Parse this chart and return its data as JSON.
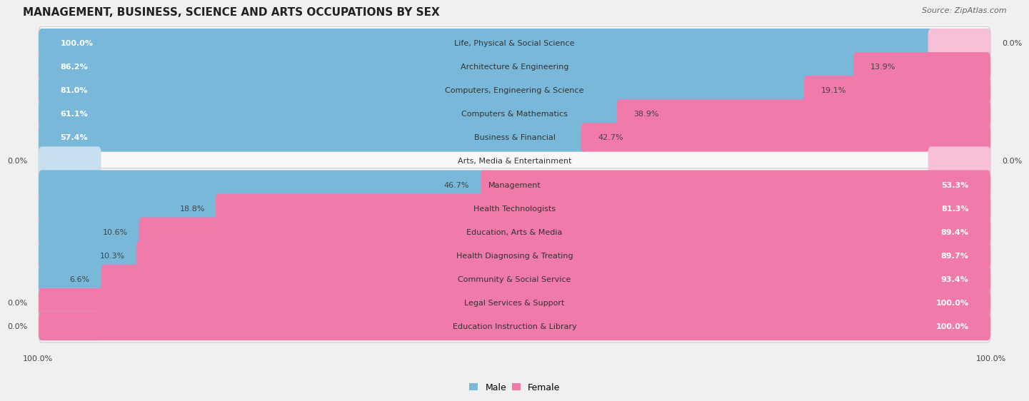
{
  "title": "MANAGEMENT, BUSINESS, SCIENCE AND ARTS OCCUPATIONS BY SEX",
  "source": "Source: ZipAtlas.com",
  "categories": [
    "Life, Physical & Social Science",
    "Architecture & Engineering",
    "Computers, Engineering & Science",
    "Computers & Mathematics",
    "Business & Financial",
    "Arts, Media & Entertainment",
    "Management",
    "Health Technologists",
    "Education, Arts & Media",
    "Health Diagnosing & Treating",
    "Community & Social Service",
    "Legal Services & Support",
    "Education Instruction & Library"
  ],
  "male": [
    100.0,
    86.2,
    81.0,
    61.1,
    57.4,
    0.0,
    46.7,
    18.8,
    10.6,
    10.3,
    6.6,
    0.0,
    0.0
  ],
  "female": [
    0.0,
    13.9,
    19.1,
    38.9,
    42.7,
    0.0,
    53.3,
    81.3,
    89.4,
    89.7,
    93.4,
    100.0,
    100.0
  ],
  "male_color": "#7ab8d9",
  "female_color": "#f07aaa",
  "male_label": "Male",
  "female_label": "Female",
  "bg_color": "#f0f0f0",
  "row_bg_color": "#e8e8e8",
  "bar_bg_light": "#c8dff0",
  "bar_bg_pink": "#f5c0d8",
  "title_fontsize": 11,
  "source_fontsize": 8,
  "cat_fontsize": 8,
  "val_fontsize": 8
}
